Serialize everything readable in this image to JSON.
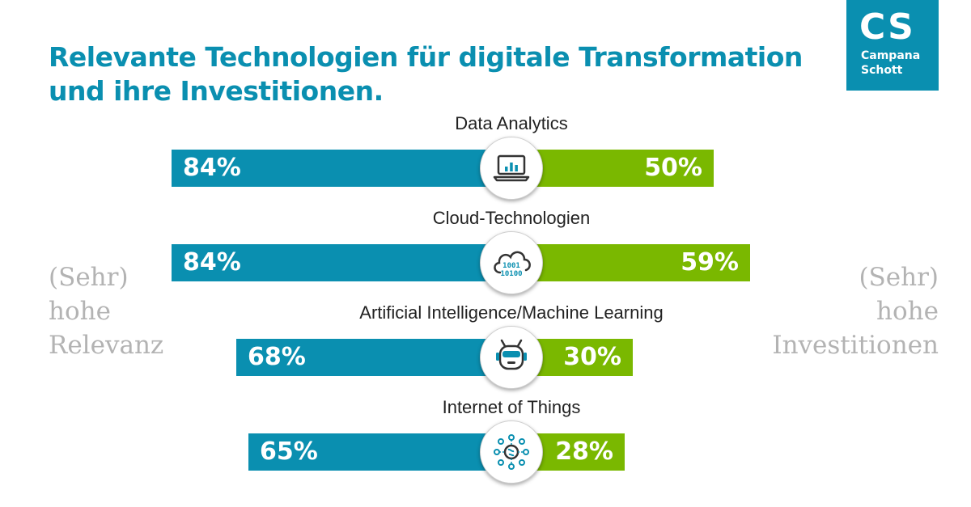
{
  "title": {
    "line1": "Relevante Technologien für digitale Transformation",
    "line2": "und ihre Investitionen."
  },
  "logo": {
    "mark": "CS",
    "name_line1": "Campana",
    "name_line2": "Schott"
  },
  "side_left": {
    "line1": "(Sehr)",
    "line2": "hohe",
    "line3": "Relevanz"
  },
  "side_right": {
    "line1": "(Sehr)",
    "line2": "hohe",
    "line3": "Investitionen"
  },
  "colors": {
    "relevance": "#0a8fb0",
    "investment": "#7ab800",
    "title": "#0a8fb0",
    "side_text": "#b3b3b3"
  },
  "chart_data": {
    "type": "bar",
    "categories": [
      "Data Analytics",
      "Cloud-Technologien",
      "Artificial Intelligence/Machine Learning",
      "Internet of Things"
    ],
    "series": [
      {
        "name": "(Sehr) hohe Relevanz",
        "values": [
          84,
          84,
          68,
          65
        ],
        "labels": [
          "84%",
          "84%",
          "68%",
          "65%"
        ]
      },
      {
        "name": "(Sehr) hohe Investitionen",
        "values": [
          50,
          59,
          30,
          28
        ],
        "labels": [
          "50%",
          "59%",
          "30%",
          "28%"
        ]
      }
    ],
    "icons": [
      "laptop-chart-icon",
      "cloud-binary-icon",
      "robot-icon",
      "iot-network-icon"
    ],
    "ylim": [
      0,
      100
    ],
    "grid": false,
    "legend": "sides"
  }
}
